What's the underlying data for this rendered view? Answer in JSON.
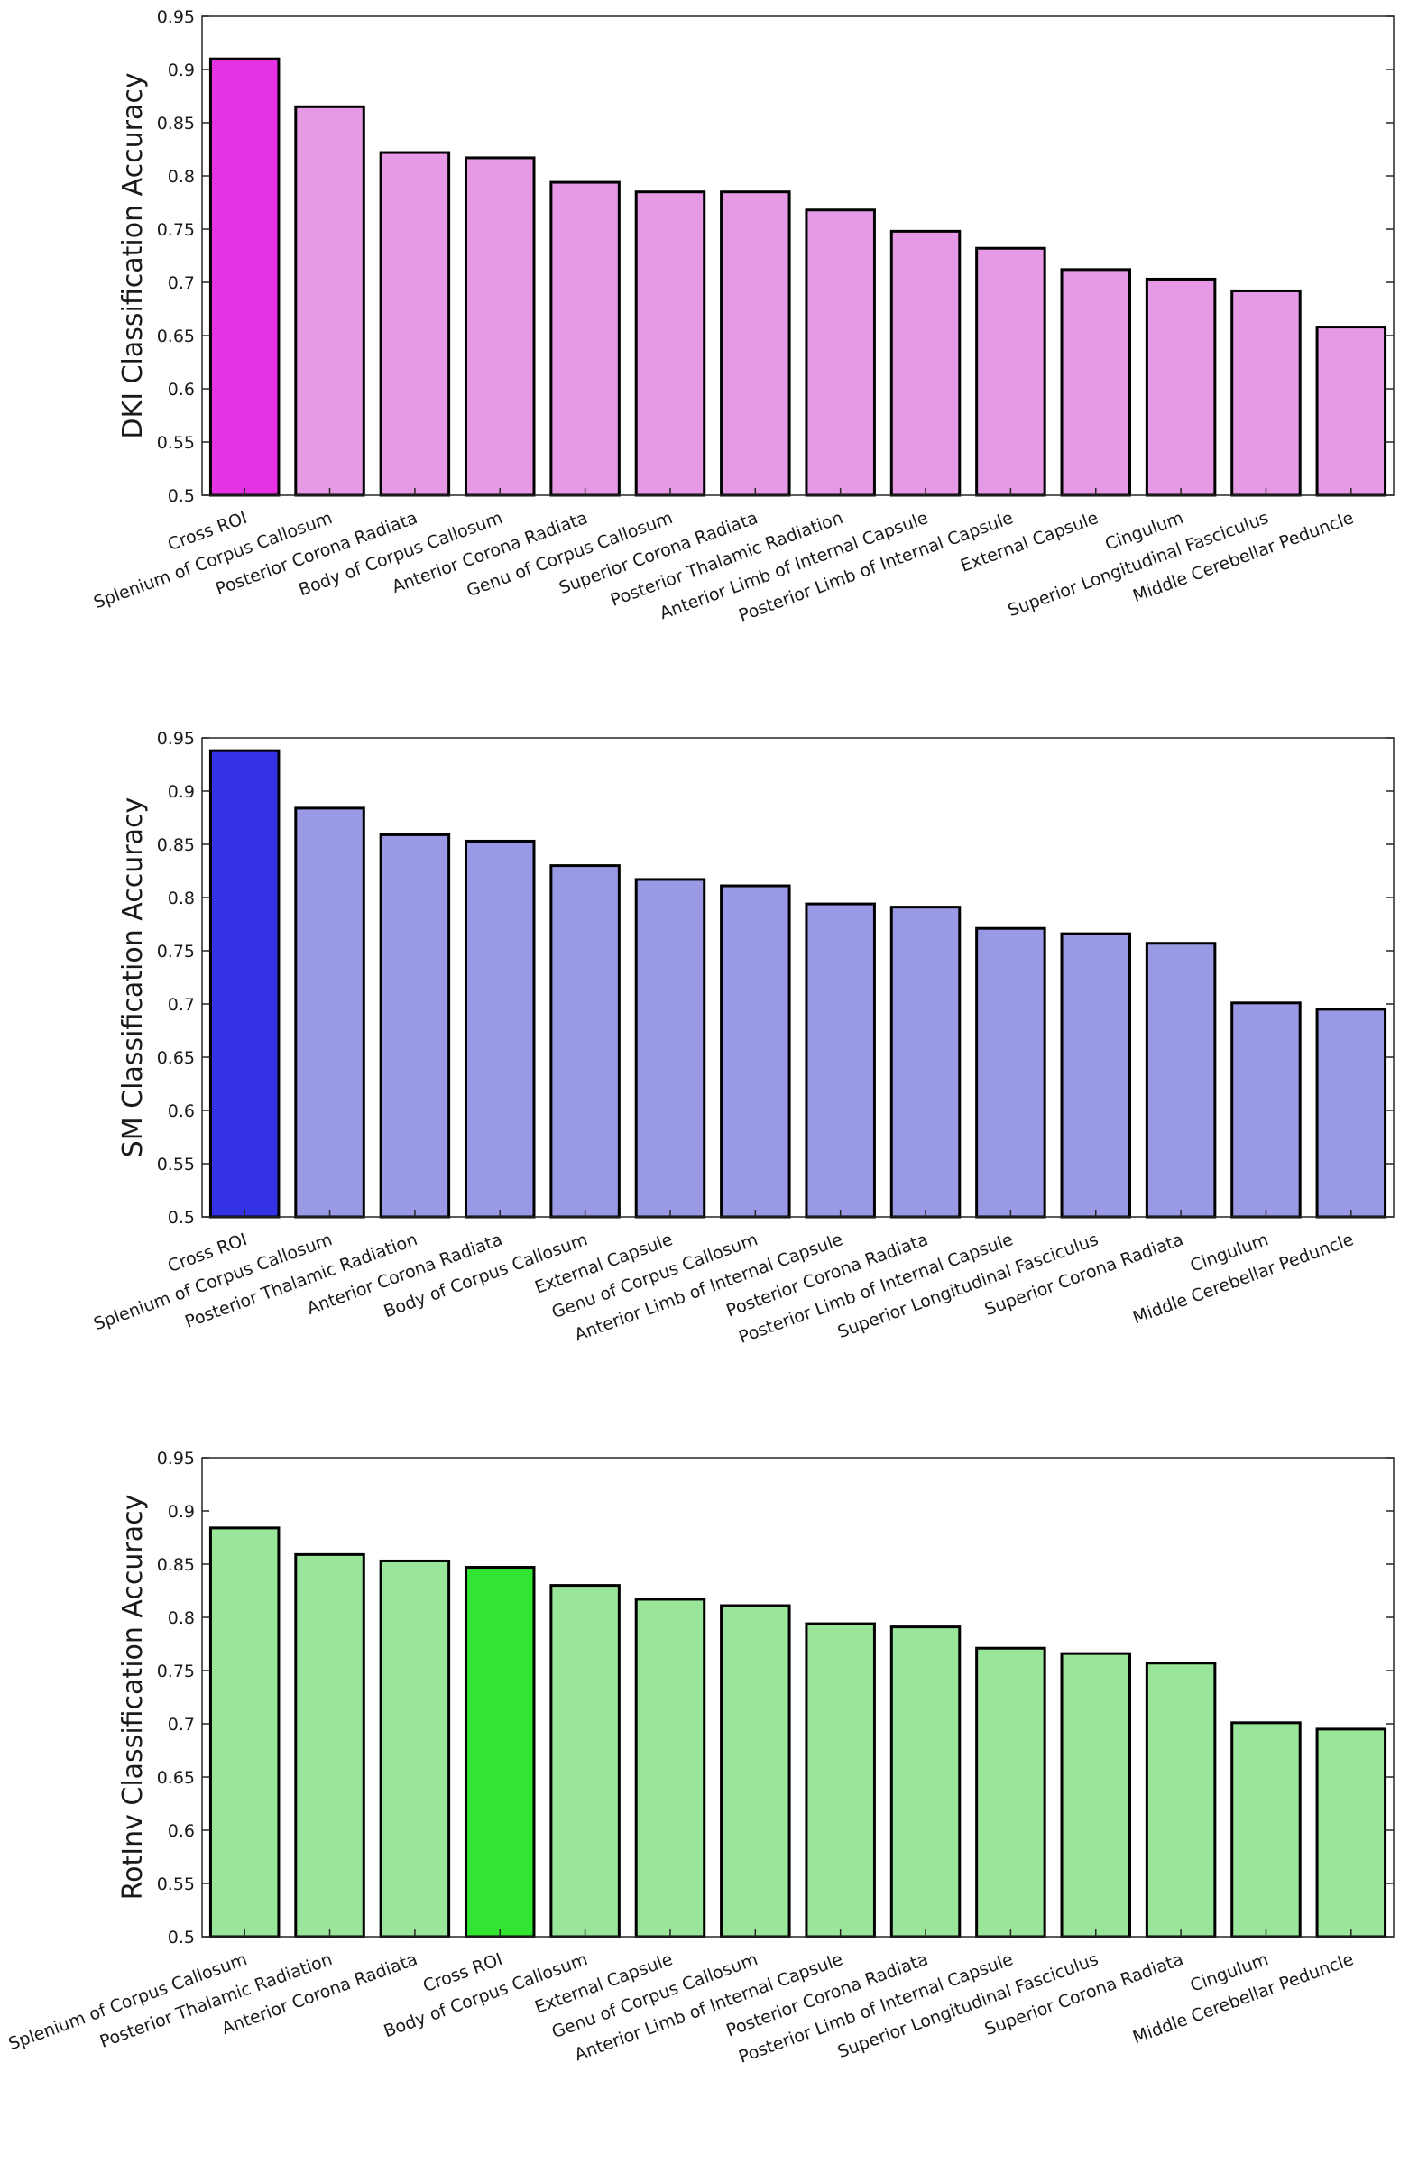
{
  "chart_data": [
    {
      "type": "bar",
      "ylabel": "DKI Classification Accuracy",
      "xlabel": "",
      "title": "",
      "ylim": [
        0.5,
        0.95
      ],
      "yticks": [
        "0.5",
        "0.55",
        "0.6",
        "0.65",
        "0.7",
        "0.75",
        "0.8",
        "0.85",
        "0.9",
        "0.95"
      ],
      "categories": [
        "Cross ROI",
        "Splenium of Corpus Callosum",
        "Posterior Corona Radiata",
        "Body of Corpus Callosum",
        "Anterior Corona Radiata",
        "Genu of Corpus Callosum",
        "Superior Corona Radiata",
        "Posterior Thalamic Radiation",
        "Anterior Limb of Internal Capsule",
        "Posterior Limb of Internal Capsule",
        "External Capsule",
        "Cingulum",
        "Superior Longitudinal Fasciculus",
        "Middle Cerebellar Peduncle"
      ],
      "values": [
        0.91,
        0.865,
        0.822,
        0.817,
        0.794,
        0.785,
        0.785,
        0.768,
        0.748,
        0.732,
        0.712,
        0.703,
        0.692,
        0.658
      ],
      "highlight_category": "Cross ROI",
      "colors": {
        "highlight": "#e533e3",
        "normal": "#e699e5",
        "edge": "#000000"
      }
    },
    {
      "type": "bar",
      "ylabel": "SM Classification Accuracy",
      "xlabel": "",
      "title": "",
      "ylim": [
        0.5,
        0.95
      ],
      "yticks": [
        "0.5",
        "0.55",
        "0.6",
        "0.65",
        "0.7",
        "0.75",
        "0.8",
        "0.85",
        "0.9",
        "0.95"
      ],
      "categories": [
        "Cross ROI",
        "Splenium of Corpus Callosum",
        "Posterior Thalamic Radiation",
        "Anterior Corona Radiata",
        "Body of Corpus Callosum",
        "External Capsule",
        "Genu of Corpus Callosum",
        "Anterior Limb of Internal Capsule",
        "Posterior Corona Radiata",
        "Posterior Limb of Internal Capsule",
        "Superior Longitudinal Fasciculus",
        "Superior Corona Radiata",
        "Cingulum",
        "Middle Cerebellar Peduncle"
      ],
      "values": [
        0.938,
        0.884,
        0.859,
        0.853,
        0.83,
        0.817,
        0.811,
        0.794,
        0.791,
        0.771,
        0.766,
        0.757,
        0.701,
        0.695
      ],
      "highlight_category": "Cross ROI",
      "colors": {
        "highlight": "#3333e5",
        "normal": "#9999e5",
        "edge": "#000000"
      }
    },
    {
      "type": "bar",
      "ylabel": "RotInv Classification Accuracy",
      "xlabel": "",
      "title": "",
      "ylim": [
        0.5,
        0.95
      ],
      "yticks": [
        "0.5",
        "0.55",
        "0.6",
        "0.65",
        "0.7",
        "0.75",
        "0.8",
        "0.85",
        "0.9",
        "0.95"
      ],
      "categories": [
        "Splenium of Corpus Callosum",
        "Posterior Thalamic Radiation",
        "Anterior Corona Radiata",
        "Cross ROI",
        "Body of Corpus Callosum",
        "External Capsule",
        "Genu of Corpus Callosum",
        "Anterior Limb of Internal Capsule",
        "Posterior Corona Radiata",
        "Posterior Limb of Internal Capsule",
        "Superior Longitudinal Fasciculus",
        "Superior Corona Radiata",
        "Cingulum",
        "Middle Cerebellar Peduncle"
      ],
      "values": [
        0.884,
        0.859,
        0.853,
        0.847,
        0.83,
        0.817,
        0.811,
        0.794,
        0.791,
        0.771,
        0.766,
        0.757,
        0.701,
        0.695
      ],
      "highlight_category": "Cross ROI",
      "colors": {
        "highlight": "#33e533",
        "normal": "#99e599",
        "edge": "#000000"
      }
    }
  ]
}
